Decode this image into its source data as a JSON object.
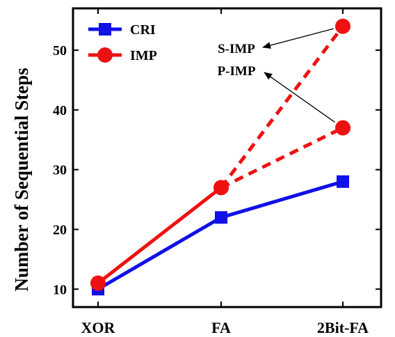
{
  "chart_data": {
    "type": "line",
    "categories": [
      "XOR",
      "FA",
      "2Bit-FA"
    ],
    "ylabel": "Number of Sequential Steps",
    "xlabel": "",
    "ylim": [
      7,
      57
    ],
    "yticks": [
      10,
      20,
      30,
      40,
      50
    ],
    "grid": false,
    "legend_position": "top-left",
    "series": [
      {
        "name": "CRI",
        "values": [
          10,
          22,
          28
        ],
        "color": "#1010e8",
        "marker": "square",
        "style": "solid"
      },
      {
        "name": "IMP",
        "values": [
          11,
          27,
          null
        ],
        "color": "#ee1111",
        "marker": "circle",
        "style": "solid"
      }
    ],
    "dashed_branches": [
      {
        "label": "S-IMP",
        "series": "IMP",
        "from": [
          "FA",
          27
        ],
        "to": [
          "2Bit-FA",
          54
        ]
      },
      {
        "label": "P-IMP",
        "series": "IMP",
        "from": [
          "FA",
          27
        ],
        "to": [
          "2Bit-FA",
          37
        ]
      }
    ]
  }
}
